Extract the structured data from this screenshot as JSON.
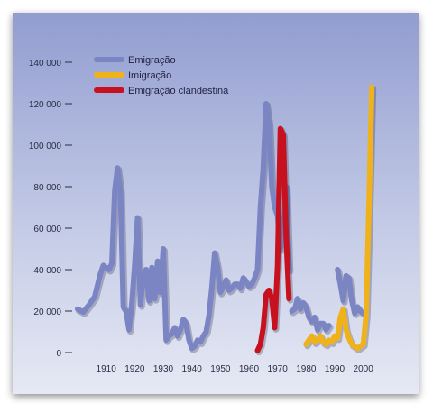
{
  "chart_data": {
    "type": "line",
    "title": "",
    "xlabel": "",
    "ylabel": "",
    "xlim": [
      1900,
      2008
    ],
    "ylim": [
      0,
      140000
    ],
    "grid": false,
    "legend_position": "top-left",
    "x_ticks": [
      1910,
      1920,
      1930,
      1940,
      1950,
      1960,
      1970,
      1980,
      1990,
      2000
    ],
    "y_ticks": [
      {
        "value": 0,
        "label": "0"
      },
      {
        "value": 20000,
        "label": "20 000"
      },
      {
        "value": 40000,
        "label": "40 000"
      },
      {
        "value": 60000,
        "label": "60 000"
      },
      {
        "value": 80000,
        "label": "80 000"
      },
      {
        "value": 100000,
        "label": "100 000"
      },
      {
        "value": 120000,
        "label": "120 000"
      },
      {
        "value": 140000,
        "label": "140 000"
      }
    ],
    "series": [
      {
        "name": "Emigração",
        "color": "#7b85c4",
        "segments": [
          [
            [
              1900,
              21000
            ],
            [
              1902,
              19500
            ],
            [
              1904,
              23000
            ],
            [
              1906,
              27000
            ],
            [
              1908,
              38000
            ],
            [
              1909,
              42000
            ],
            [
              1911,
              40000
            ],
            [
              1912,
              43000
            ],
            [
              1913,
              78000
            ],
            [
              1914,
              89000
            ],
            [
              1915,
              78000
            ],
            [
              1916,
              22000
            ],
            [
              1917,
              20000
            ],
            [
              1918,
              11000
            ],
            [
              1919,
              24000
            ],
            [
              1920,
              42000
            ],
            [
              1921,
              65000
            ],
            [
              1922,
              23000
            ],
            [
              1923,
              37000
            ],
            [
              1924,
              40000
            ],
            [
              1925,
              25000
            ],
            [
              1926,
              41000
            ],
            [
              1927,
              26000
            ],
            [
              1928,
              44000
            ],
            [
              1929,
              29000
            ],
            [
              1930,
              50000
            ],
            [
              1931,
              6000
            ],
            [
              1932,
              8000
            ],
            [
              1933,
              9000
            ],
            [
              1934,
              12000
            ],
            [
              1935,
              8000
            ],
            [
              1936,
              11000
            ],
            [
              1937,
              16000
            ],
            [
              1938,
              14000
            ],
            [
              1939,
              6000
            ],
            [
              1940,
              2000
            ],
            [
              1941,
              3000
            ],
            [
              1942,
              6000
            ],
            [
              1943,
              5000
            ],
            [
              1944,
              8000
            ],
            [
              1945,
              10000
            ],
            [
              1946,
              18000
            ],
            [
              1947,
              31000
            ],
            [
              1948,
              48000
            ],
            [
              1949,
              41000
            ],
            [
              1950,
              29000
            ],
            [
              1951,
              32000
            ],
            [
              1952,
              35000
            ],
            [
              1953,
              30000
            ],
            [
              1954,
              31000
            ],
            [
              1955,
              33000
            ],
            [
              1956,
              33000
            ],
            [
              1957,
              31000
            ],
            [
              1958,
              36000
            ],
            [
              1959,
              34000
            ],
            [
              1960,
              32000
            ],
            [
              1961,
              33000
            ],
            [
              1962,
              36000
            ],
            [
              1963,
              40000
            ],
            [
              1964,
              70000
            ],
            [
              1965,
              89000
            ],
            [
              1966,
              120000
            ],
            [
              1967,
              110000
            ],
            [
              1968,
              80000
            ],
            [
              1969,
              70000
            ],
            [
              1970,
              66000
            ],
            [
              1971,
              50000
            ],
            [
              1972,
              55000
            ],
            [
              1973,
              80000
            ],
            [
              1974,
              40000
            ]
          ],
          [
            [
              1975,
              20000
            ],
            [
              1976,
              21000
            ],
            [
              1977,
              26000
            ],
            [
              1978,
              21000
            ],
            [
              1979,
              24000
            ],
            [
              1980,
              22000
            ],
            [
              1981,
              17000
            ],
            [
              1982,
              15000
            ],
            [
              1983,
              17000
            ],
            [
              1984,
              11000
            ],
            [
              1985,
              14000
            ],
            [
              1986,
              14000
            ],
            [
              1987,
              11000
            ],
            [
              1988,
              13000
            ]
          ],
          [
            [
              1991,
              40000
            ],
            [
              1992,
              33000
            ],
            [
              1993,
              25000
            ],
            [
              1994,
              37000
            ],
            [
              1995,
              36000
            ],
            [
              1996,
              25000
            ],
            [
              1997,
              19000
            ],
            [
              1998,
              22000
            ],
            [
              1999,
              20000
            ],
            [
              2000,
              19000
            ]
          ]
        ]
      },
      {
        "name": "Imigração",
        "color": "#f0b21a",
        "segments": [
          [
            [
              1980,
              4000
            ],
            [
              1982,
              8000
            ],
            [
              1983,
              5000
            ],
            [
              1984,
              6000
            ],
            [
              1985,
              8000
            ],
            [
              1986,
              5000
            ],
            [
              1987,
              4000
            ],
            [
              1988,
              6000
            ],
            [
              1989,
              5000
            ],
            [
              1990,
              8000
            ],
            [
              1991,
              7000
            ],
            [
              1992,
              17000
            ],
            [
              1993,
              21000
            ],
            [
              1994,
              11000
            ],
            [
              1995,
              7000
            ],
            [
              1996,
              4000
            ],
            [
              1997,
              3000
            ],
            [
              1998,
              2000
            ],
            [
              1999,
              3000
            ],
            [
              2000,
              4000
            ],
            [
              2001,
              18000
            ],
            [
              2002,
              70000
            ],
            [
              2003,
              128000
            ]
          ]
        ]
      },
      {
        "name": "Emigração clandestina",
        "color": "#c8111e",
        "segments": [
          [
            [
              1963,
              1000
            ],
            [
              1964,
              4000
            ],
            [
              1965,
              12000
            ],
            [
              1966,
              28000
            ],
            [
              1967,
              30000
            ],
            [
              1968,
              26000
            ],
            [
              1969,
              12000
            ],
            [
              1970,
              42000
            ],
            [
              1971,
              108000
            ],
            [
              1972,
              105000
            ],
            [
              1973,
              56000
            ],
            [
              1974,
              26000
            ]
          ]
        ]
      }
    ]
  }
}
